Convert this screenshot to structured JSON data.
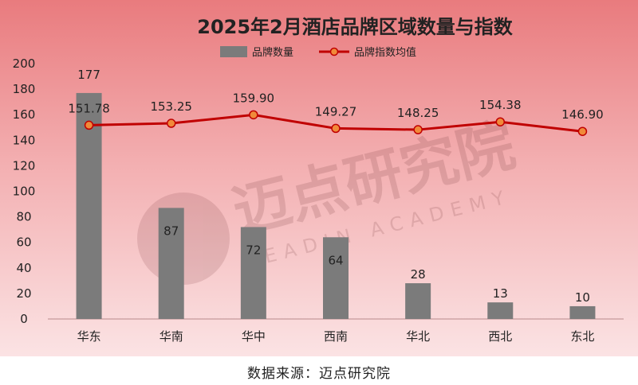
{
  "chart_data": {
    "type": "bar+line",
    "title": "2025年2月酒店品牌区域数量与指数",
    "categories": [
      "华东",
      "华南",
      "华中",
      "西南",
      "华北",
      "西北",
      "东北"
    ],
    "ylim": [
      0,
      200
    ],
    "yticks": [
      0,
      20,
      40,
      60,
      80,
      100,
      120,
      140,
      160,
      180,
      200
    ],
    "legend_position": "top-center",
    "grid": false,
    "series": [
      {
        "name": "品牌数量",
        "type": "bar",
        "color": "#7b7b7b",
        "values": [
          177,
          87,
          72,
          64,
          28,
          13,
          10
        ],
        "labels": [
          "177",
          "87",
          "72",
          "64",
          "28",
          "13",
          "10"
        ]
      },
      {
        "name": "品牌指数均值",
        "type": "line",
        "color": "#c00000",
        "marker_color": "#f08a3a",
        "values": [
          151.78,
          153.25,
          159.9,
          149.27,
          148.25,
          154.38,
          146.9
        ],
        "labels": [
          "151.78",
          "153.25",
          "159.90",
          "149.27",
          "148.25",
          "154.38",
          "146.90"
        ]
      }
    ]
  },
  "watermark": {
    "cn": "迈点研究院",
    "en": "MEADIN ACADEMY"
  },
  "source": "数据来源：迈点研究院"
}
